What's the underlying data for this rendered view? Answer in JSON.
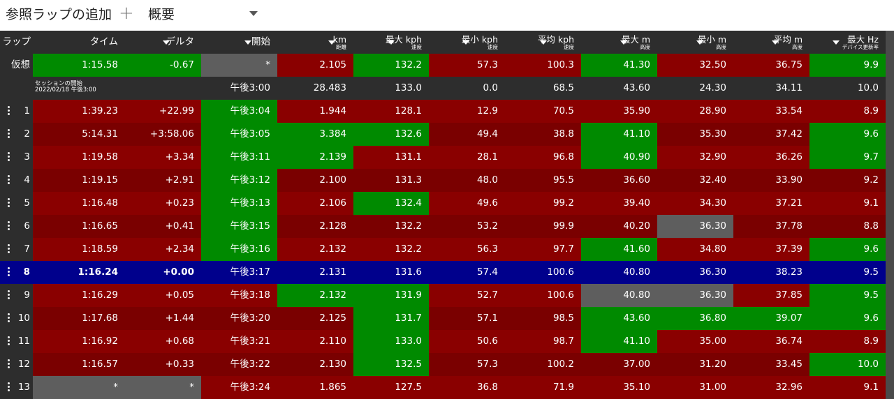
{
  "topbar": {
    "title": "参照ラップの追加",
    "plus": "+",
    "view": "概要"
  },
  "colors": {
    "green": "#008a00",
    "red": "#8a0000",
    "darkred": "#7a0000",
    "gray": "#5e5e5e",
    "blue": "#00008c",
    "dark": "#2d2d2d",
    "header": "#2d2d2d"
  },
  "headers": [
    {
      "main": "ラップ",
      "sub": "",
      "arrow": false
    },
    {
      "main": "タイム",
      "sub": "",
      "arrow": false
    },
    {
      "main": "デルタ",
      "sub": "",
      "arrow": true
    },
    {
      "main": "開始",
      "sub": "",
      "arrow": true
    },
    {
      "main": "km",
      "sub": "距離",
      "arrow": true
    },
    {
      "main": "最大 kph",
      "sub": "速度",
      "arrow": true
    },
    {
      "main": "最小 kph",
      "sub": "速度",
      "arrow": true
    },
    {
      "main": "平均 kph",
      "sub": "速度",
      "arrow": true
    },
    {
      "main": "最大 m",
      "sub": "高度",
      "arrow": true
    },
    {
      "main": "最小 m",
      "sub": "高度",
      "arrow": true
    },
    {
      "main": "平均 m",
      "sub": "高度",
      "arrow": true
    },
    {
      "main": "最大 Hz",
      "sub": "デバイス更新率",
      "arrow": true
    }
  ],
  "virtual": {
    "label": "仮想",
    "cells": [
      {
        "v": "1:15.58",
        "c": "green"
      },
      {
        "v": "-0.67",
        "c": "green"
      },
      {
        "v": "*",
        "c": "gray"
      },
      {
        "v": "2.105",
        "c": "red"
      },
      {
        "v": "132.2",
        "c": "green"
      },
      {
        "v": "57.3",
        "c": "red"
      },
      {
        "v": "100.3",
        "c": "red"
      },
      {
        "v": "41.30",
        "c": "green"
      },
      {
        "v": "32.50",
        "c": "red"
      },
      {
        "v": "36.75",
        "c": "red"
      },
      {
        "v": "9.9",
        "c": "green"
      }
    ]
  },
  "session": {
    "label1": "セッションの開始",
    "label2": "2022/02/18 午後3:00",
    "cells": [
      "午後3:00",
      "28.483",
      "133.0",
      "0.0",
      "68.5",
      "43.60",
      "24.30",
      "34.11",
      "10.0"
    ]
  },
  "laps": [
    {
      "n": "1",
      "cells": [
        {
          "v": "1:39.23",
          "c": "red"
        },
        {
          "v": "+22.99",
          "c": "red"
        },
        {
          "v": "午後3:04",
          "c": "green"
        },
        {
          "v": "1.944",
          "c": "red"
        },
        {
          "v": "128.1",
          "c": "red"
        },
        {
          "v": "12.9",
          "c": "red"
        },
        {
          "v": "70.5",
          "c": "red"
        },
        {
          "v": "35.90",
          "c": "red"
        },
        {
          "v": "28.90",
          "c": "red"
        },
        {
          "v": "33.54",
          "c": "red"
        },
        {
          "v": "8.9",
          "c": "red"
        }
      ]
    },
    {
      "n": "2",
      "cells": [
        {
          "v": "5:14.31",
          "c": "darkred"
        },
        {
          "v": "+3:58.06",
          "c": "darkred"
        },
        {
          "v": "午後3:05",
          "c": "green"
        },
        {
          "v": "3.384",
          "c": "green"
        },
        {
          "v": "132.6",
          "c": "green"
        },
        {
          "v": "49.4",
          "c": "darkred"
        },
        {
          "v": "38.8",
          "c": "darkred"
        },
        {
          "v": "41.10",
          "c": "green"
        },
        {
          "v": "35.30",
          "c": "darkred"
        },
        {
          "v": "37.42",
          "c": "darkred"
        },
        {
          "v": "9.6",
          "c": "green"
        }
      ]
    },
    {
      "n": "3",
      "cells": [
        {
          "v": "1:19.58",
          "c": "red"
        },
        {
          "v": "+3.34",
          "c": "red"
        },
        {
          "v": "午後3:11",
          "c": "green"
        },
        {
          "v": "2.139",
          "c": "green"
        },
        {
          "v": "131.1",
          "c": "red"
        },
        {
          "v": "28.1",
          "c": "red"
        },
        {
          "v": "96.8",
          "c": "red"
        },
        {
          "v": "40.90",
          "c": "green"
        },
        {
          "v": "32.90",
          "c": "red"
        },
        {
          "v": "36.26",
          "c": "red"
        },
        {
          "v": "9.7",
          "c": "green"
        }
      ]
    },
    {
      "n": "4",
      "cells": [
        {
          "v": "1:19.15",
          "c": "darkred"
        },
        {
          "v": "+2.91",
          "c": "darkred"
        },
        {
          "v": "午後3:12",
          "c": "green"
        },
        {
          "v": "2.100",
          "c": "darkred"
        },
        {
          "v": "131.3",
          "c": "darkred"
        },
        {
          "v": "48.0",
          "c": "darkred"
        },
        {
          "v": "95.5",
          "c": "darkred"
        },
        {
          "v": "36.60",
          "c": "darkred"
        },
        {
          "v": "32.40",
          "c": "darkred"
        },
        {
          "v": "33.90",
          "c": "darkred"
        },
        {
          "v": "9.2",
          "c": "darkred"
        }
      ]
    },
    {
      "n": "5",
      "cells": [
        {
          "v": "1:16.48",
          "c": "red"
        },
        {
          "v": "+0.23",
          "c": "red"
        },
        {
          "v": "午後3:13",
          "c": "green"
        },
        {
          "v": "2.106",
          "c": "red"
        },
        {
          "v": "132.4",
          "c": "green"
        },
        {
          "v": "49.6",
          "c": "red"
        },
        {
          "v": "99.2",
          "c": "red"
        },
        {
          "v": "39.40",
          "c": "red"
        },
        {
          "v": "34.30",
          "c": "red"
        },
        {
          "v": "37.21",
          "c": "red"
        },
        {
          "v": "9.1",
          "c": "red"
        }
      ]
    },
    {
      "n": "6",
      "cells": [
        {
          "v": "1:16.65",
          "c": "darkred"
        },
        {
          "v": "+0.41",
          "c": "darkred"
        },
        {
          "v": "午後3:15",
          "c": "green"
        },
        {
          "v": "2.128",
          "c": "darkred"
        },
        {
          "v": "132.2",
          "c": "darkred"
        },
        {
          "v": "53.2",
          "c": "darkred"
        },
        {
          "v": "99.9",
          "c": "darkred"
        },
        {
          "v": "40.20",
          "c": "darkred"
        },
        {
          "v": "36.30",
          "c": "gray"
        },
        {
          "v": "37.78",
          "c": "darkred"
        },
        {
          "v": "8.8",
          "c": "darkred"
        }
      ]
    },
    {
      "n": "7",
      "cells": [
        {
          "v": "1:18.59",
          "c": "red"
        },
        {
          "v": "+2.34",
          "c": "red"
        },
        {
          "v": "午後3:16",
          "c": "green"
        },
        {
          "v": "2.132",
          "c": "red"
        },
        {
          "v": "132.2",
          "c": "red"
        },
        {
          "v": "56.3",
          "c": "red"
        },
        {
          "v": "97.7",
          "c": "red"
        },
        {
          "v": "41.60",
          "c": "green"
        },
        {
          "v": "34.80",
          "c": "red"
        },
        {
          "v": "37.39",
          "c": "red"
        },
        {
          "v": "9.6",
          "c": "green"
        }
      ]
    },
    {
      "n": "8",
      "selected": true,
      "cells": [
        {
          "v": "1:16.24",
          "c": "blue"
        },
        {
          "v": "+0.00",
          "c": "blue"
        },
        {
          "v": "午後3:17",
          "c": "blue"
        },
        {
          "v": "2.131",
          "c": "blue"
        },
        {
          "v": "131.6",
          "c": "blue"
        },
        {
          "v": "57.4",
          "c": "blue"
        },
        {
          "v": "100.6",
          "c": "blue"
        },
        {
          "v": "40.80",
          "c": "blue"
        },
        {
          "v": "36.30",
          "c": "blue"
        },
        {
          "v": "38.23",
          "c": "blue"
        },
        {
          "v": "9.5",
          "c": "blue"
        }
      ]
    },
    {
      "n": "9",
      "cells": [
        {
          "v": "1:16.29",
          "c": "red"
        },
        {
          "v": "+0.05",
          "c": "red"
        },
        {
          "v": "午後3:18",
          "c": "red"
        },
        {
          "v": "2.132",
          "c": "green"
        },
        {
          "v": "131.9",
          "c": "green"
        },
        {
          "v": "52.7",
          "c": "red"
        },
        {
          "v": "100.6",
          "c": "red"
        },
        {
          "v": "40.80",
          "c": "gray"
        },
        {
          "v": "36.30",
          "c": "gray"
        },
        {
          "v": "37.85",
          "c": "red"
        },
        {
          "v": "9.5",
          "c": "green"
        }
      ]
    },
    {
      "n": "10",
      "cells": [
        {
          "v": "1:17.68",
          "c": "darkred"
        },
        {
          "v": "+1.44",
          "c": "darkred"
        },
        {
          "v": "午後3:20",
          "c": "darkred"
        },
        {
          "v": "2.125",
          "c": "darkred"
        },
        {
          "v": "131.7",
          "c": "green"
        },
        {
          "v": "57.1",
          "c": "darkred"
        },
        {
          "v": "98.5",
          "c": "darkred"
        },
        {
          "v": "43.60",
          "c": "green"
        },
        {
          "v": "36.80",
          "c": "green"
        },
        {
          "v": "39.07",
          "c": "green"
        },
        {
          "v": "9.6",
          "c": "green"
        }
      ]
    },
    {
      "n": "11",
      "cells": [
        {
          "v": "1:16.92",
          "c": "red"
        },
        {
          "v": "+0.68",
          "c": "red"
        },
        {
          "v": "午後3:21",
          "c": "red"
        },
        {
          "v": "2.110",
          "c": "red"
        },
        {
          "v": "133.0",
          "c": "green"
        },
        {
          "v": "50.6",
          "c": "red"
        },
        {
          "v": "98.7",
          "c": "red"
        },
        {
          "v": "41.10",
          "c": "green"
        },
        {
          "v": "35.00",
          "c": "red"
        },
        {
          "v": "36.74",
          "c": "red"
        },
        {
          "v": "8.9",
          "c": "red"
        }
      ]
    },
    {
      "n": "12",
      "cells": [
        {
          "v": "1:16.57",
          "c": "darkred"
        },
        {
          "v": "+0.33",
          "c": "darkred"
        },
        {
          "v": "午後3:22",
          "c": "darkred"
        },
        {
          "v": "2.130",
          "c": "darkred"
        },
        {
          "v": "132.5",
          "c": "green"
        },
        {
          "v": "57.3",
          "c": "darkred"
        },
        {
          "v": "100.2",
          "c": "darkred"
        },
        {
          "v": "37.00",
          "c": "darkred"
        },
        {
          "v": "31.20",
          "c": "darkred"
        },
        {
          "v": "33.45",
          "c": "darkred"
        },
        {
          "v": "10.0",
          "c": "green"
        }
      ]
    },
    {
      "n": "13",
      "cells": [
        {
          "v": "*",
          "c": "gray"
        },
        {
          "v": "*",
          "c": "gray"
        },
        {
          "v": "午後3:24",
          "c": "red"
        },
        {
          "v": "1.865",
          "c": "red"
        },
        {
          "v": "127.5",
          "c": "red"
        },
        {
          "v": "36.8",
          "c": "red"
        },
        {
          "v": "71.9",
          "c": "red"
        },
        {
          "v": "35.10",
          "c": "red"
        },
        {
          "v": "31.00",
          "c": "red"
        },
        {
          "v": "32.96",
          "c": "red"
        },
        {
          "v": "9.1",
          "c": "red"
        }
      ]
    }
  ]
}
